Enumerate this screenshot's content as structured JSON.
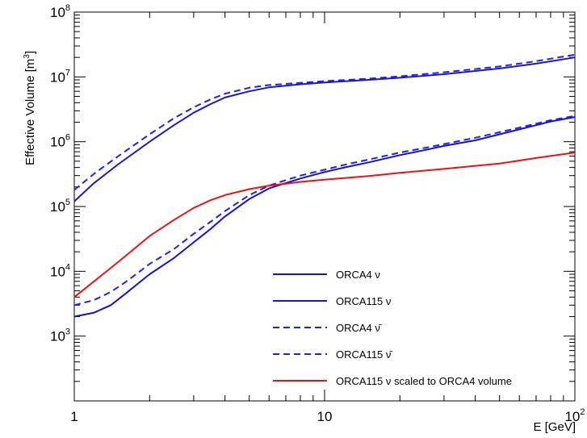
{
  "chart_data": {
    "type": "line",
    "title": "",
    "xlabel": "E [GeV]",
    "ylabel": "Effective Volume [m",
    "ylabel_exp": "3",
    "ylabel_close": "]",
    "xscale": "log",
    "yscale": "log",
    "xlim": [
      1,
      100
    ],
    "ylim": [
      100,
      100000000
    ],
    "grid": false,
    "legend_position": "bottom-right",
    "x_ticks": [
      {
        "value": 1,
        "base": "1",
        "exp": ""
      },
      {
        "value": 10,
        "base": "10",
        "exp": ""
      },
      {
        "value": 100,
        "base": "10",
        "exp": "2"
      }
    ],
    "y_ticks": [
      {
        "value": 1000,
        "base": "10",
        "exp": "3"
      },
      {
        "value": 10000,
        "base": "10",
        "exp": "4"
      },
      {
        "value": 100000,
        "base": "10",
        "exp": "5"
      },
      {
        "value": 1000000,
        "base": "10",
        "exp": "6"
      },
      {
        "value": 10000000,
        "base": "10",
        "exp": "7"
      },
      {
        "value": 100000000,
        "base": "10",
        "exp": "8"
      }
    ],
    "series": [
      {
        "name": "ORCA4 ν",
        "color": "#1010e0",
        "dash": "solid",
        "x": [
          1,
          1.2,
          1.4,
          1.6,
          1.8,
          2,
          2.5,
          3,
          3.5,
          4,
          5,
          6,
          7,
          8,
          10,
          12,
          15,
          20,
          25,
          30,
          40,
          50,
          60,
          70,
          80,
          100
        ],
        "y": [
          2000,
          2300,
          3000,
          4500,
          6500,
          9000,
          16000,
          28000,
          45000,
          70000,
          130000,
          190000,
          230000,
          270000,
          340000,
          400000,
          480000,
          620000,
          740000,
          860000,
          1050000,
          1300000,
          1550000,
          1800000,
          2050000,
          2400000
        ]
      },
      {
        "name": "ORCA115 ν",
        "color": "#1818c8",
        "dash": "solid",
        "x": [
          1,
          1.2,
          1.5,
          2,
          2.5,
          3,
          3.5,
          4,
          5,
          6,
          7,
          8,
          10,
          15,
          20,
          30,
          50,
          70,
          100
        ],
        "y": [
          120000,
          230000,
          450000,
          1000000,
          1800000,
          2800000,
          3800000,
          4800000,
          6000000,
          6900000,
          7300000,
          7700000,
          8200000,
          9000000,
          9700000,
          11000000,
          13500000,
          16000000,
          20000000
        ]
      },
      {
        "name": "ORCA4 ν̄",
        "color": "#2020f0",
        "dash": "dashed",
        "x": [
          1,
          1.2,
          1.4,
          1.6,
          1.8,
          2,
          2.5,
          3,
          3.5,
          4,
          5,
          6,
          7,
          8,
          10,
          12,
          15,
          20,
          25,
          30,
          40,
          50,
          60,
          70,
          80,
          100
        ],
        "y": [
          3000,
          3600,
          4800,
          6800,
          9500,
          13000,
          22000,
          38000,
          58000,
          85000,
          150000,
          210000,
          255000,
          300000,
          370000,
          440000,
          530000,
          680000,
          800000,
          920000,
          1150000,
          1400000,
          1650000,
          1900000,
          2150000,
          2500000
        ]
      },
      {
        "name": "ORCA115 ν̄",
        "color": "#2020f0",
        "dash": "dashed",
        "x": [
          1,
          1.2,
          1.5,
          2,
          2.5,
          3,
          3.5,
          4,
          5,
          6,
          7,
          8,
          10,
          15,
          20,
          30,
          50,
          70,
          100
        ],
        "y": [
          180000,
          320000,
          600000,
          1300000,
          2300000,
          3400000,
          4500000,
          5500000,
          6800000,
          7500000,
          7800000,
          8100000,
          8600000,
          9400000,
          10200000,
          11800000,
          14500000,
          17500000,
          22000000
        ]
      },
      {
        "name": "ORCA115 ν scaled to ORCA4 volume",
        "color": "#ee1111",
        "dash": "solid",
        "x": [
          1,
          1.2,
          1.5,
          2,
          2.5,
          3,
          3.5,
          4,
          5,
          6,
          7,
          8,
          10,
          15,
          20,
          30,
          50,
          70,
          100
        ],
        "y": [
          4000,
          7000,
          14000,
          35000,
          62000,
          95000,
          125000,
          150000,
          185000,
          210000,
          225000,
          240000,
          260000,
          295000,
          330000,
          380000,
          460000,
          560000,
          680000
        ]
      }
    ]
  }
}
